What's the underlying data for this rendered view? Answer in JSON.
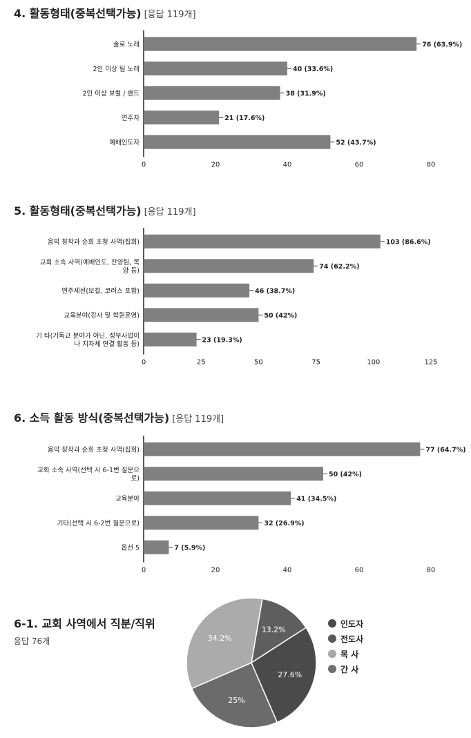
{
  "charts": [
    {
      "title": "4. 활동형태(중복선택가능)",
      "response": "[응답 119개]",
      "chart_data": {
        "type": "bar",
        "orientation": "horizontal",
        "categories": [
          [
            "솔로 노래"
          ],
          [
            "2인 이상 팀 노래"
          ],
          [
            "2인 이상 보컬 / 밴드"
          ],
          [
            "연주자"
          ],
          [
            "예배인도자"
          ]
        ],
        "values": [
          76,
          40,
          38,
          21,
          52
        ],
        "labels": [
          "76 (63.9%)",
          "40 (33.6%)",
          "38 (31.9%)",
          "21 (17.6%)",
          "52 (43.7%)"
        ],
        "xlim": [
          0,
          80
        ],
        "ticks": [
          0,
          20,
          40,
          60,
          80
        ],
        "grid": false
      }
    },
    {
      "title": "5. 활동형태(중복선택가능)",
      "response": "[응답 119개]",
      "chart_data": {
        "type": "bar",
        "orientation": "horizontal",
        "categories": [
          [
            "음악 창작과 순회 초청 사역(집회)"
          ],
          [
            "교회 소속 사역(예배인도, 찬양팀, 목",
            "양 등)"
          ],
          [
            "연주세션(보컬, 코러스 포함)"
          ],
          [
            "교육분야(강사 및 학원운영)"
          ],
          [
            "기 타(기독교 분야가 아닌, 정부사업이",
            "나 지자체 연결 활동 등)"
          ]
        ],
        "values": [
          103,
          74,
          46,
          50,
          23
        ],
        "labels": [
          "103 (86.6%)",
          "74 (62.2%)",
          "46 (38.7%)",
          "50 (42%)",
          "23 (19.3%)"
        ],
        "xlim": [
          0,
          125
        ],
        "ticks": [
          0,
          25,
          50,
          75,
          100,
          125
        ],
        "grid": false
      }
    },
    {
      "title": "6. 소득 활동 방식(중복선택가능)",
      "response": "[응답 119개]",
      "chart_data": {
        "type": "bar",
        "orientation": "horizontal",
        "categories": [
          [
            "음악 창작과 순회 초청 사역(집회)"
          ],
          [
            "교회 소속 사역(선택 시 6-1번 질문으",
            "로)"
          ],
          [
            "교육분야"
          ],
          [
            "기타(선택 시 6-2번 질문으로)"
          ],
          [
            "옵션 5"
          ]
        ],
        "values": [
          77,
          50,
          41,
          32,
          7
        ],
        "labels": [
          "77 (64.7%)",
          "50 (42%)",
          "41 (34.5%)",
          "32 (26.9%)",
          "7 (5.9%)"
        ],
        "xlim": [
          0,
          80
        ],
        "ticks": [
          0,
          20,
          40,
          60,
          80
        ],
        "grid": false
      }
    }
  ],
  "pie": {
    "title": "6-1. 교회 사역에서 직분/직위",
    "response": "응답 76개",
    "chart_data": {
      "type": "pie",
      "series": [
        {
          "name": "인도자",
          "value": 13.2,
          "label": "13.2%",
          "color": "#5e5e5e"
        },
        {
          "name": "전도사",
          "value": 27.6,
          "label": "27.6%",
          "color": "#4a4a4a"
        },
        {
          "name": "목 사",
          "value": 25,
          "label": "25%",
          "color": "#6b6b6b"
        },
        {
          "name": "간 사",
          "value": 34.2,
          "label": "34.2%",
          "color": "#ababab"
        }
      ],
      "legend": [
        "인도자",
        "전도사",
        "목 사",
        "간 사"
      ],
      "legend_colors": [
        "#4a4a4a",
        "#5a5a5a",
        "#a8a8a8",
        "#707070"
      ],
      "legend_position": "right"
    }
  },
  "colors": {
    "bar": "#808080",
    "axis": "#222222"
  }
}
